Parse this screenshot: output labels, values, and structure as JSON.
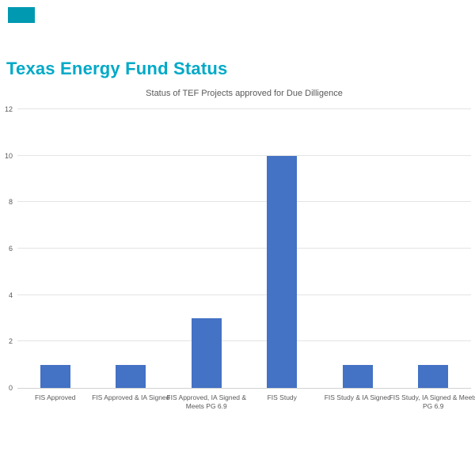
{
  "page": {
    "title": "Texas Energy Fund Status",
    "title_color": "#00A9C7",
    "corner_block_color": "#0099B2",
    "background_color": "#FFFFFF"
  },
  "chart_data": {
    "type": "bar",
    "title": "Status of TEF Projects approved for Due Dilligence",
    "categories": [
      "FIS Approved",
      "FIS Approved & IA Signed",
      "FIS Approved, IA Signed & Meets PG 6.9",
      "FIS Study",
      "FIS Study & IA Signed",
      "FIS Study, IA Signed & Meets PG 6.9"
    ],
    "values": [
      1,
      1,
      3,
      10,
      1,
      1
    ],
    "xlabel": "",
    "ylabel": "",
    "ylim": [
      0,
      12
    ],
    "yticks": [
      0,
      2,
      4,
      6,
      8,
      10,
      12
    ],
    "grid": true,
    "legend": false,
    "bar_color": "#4472C4",
    "gridline_color": "#E4E4E4",
    "axis_line_color": "#D2D2D2",
    "title_color": "#595959",
    "tick_label_color": "#595959"
  }
}
